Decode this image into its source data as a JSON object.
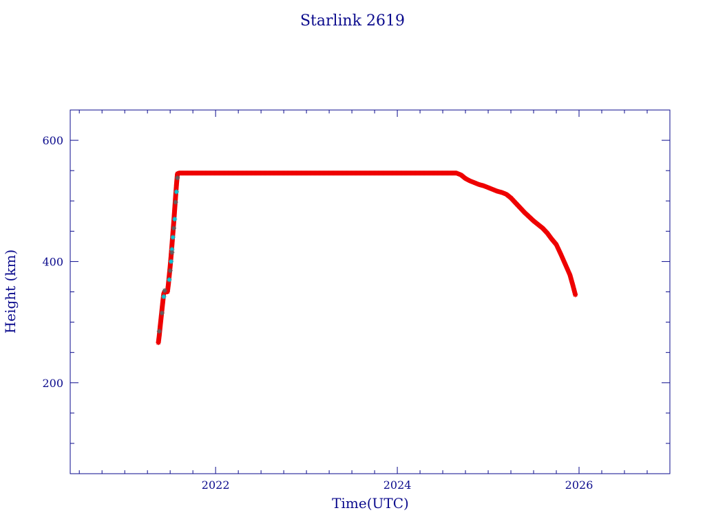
{
  "chart_data": {
    "type": "scatter",
    "title": "Starlink 2619",
    "xlabel": "Time(UTC)",
    "ylabel": "Height (km)",
    "xlim": [
      2020.4,
      2027.0
    ],
    "ylim": [
      50,
      650
    ],
    "x_ticks": [
      2022,
      2024,
      2026
    ],
    "x_tick_labels": [
      "2022",
      "2024",
      "2026"
    ],
    "x_minor_step": 0.25,
    "y_ticks": [
      200,
      400,
      600
    ],
    "y_tick_labels": [
      "200",
      "400",
      "600"
    ],
    "y_minor_step": 50,
    "grid": false,
    "colors": {
      "frame": "#0a0a8c",
      "text": "#0a0a8c",
      "main": "#ee0000",
      "alt": "#00c8d8",
      "dark": "#606060"
    },
    "series": [
      {
        "marker": "asterisk",
        "color": "#ee0000",
        "points": [
          [
            2021.37,
            266
          ],
          [
            2021.38,
            278
          ],
          [
            2021.39,
            293
          ],
          [
            2021.4,
            307
          ],
          [
            2021.41,
            321
          ],
          [
            2021.42,
            335
          ],
          [
            2021.43,
            348
          ],
          [
            2021.44,
            350
          ],
          [
            2021.45,
            350
          ],
          [
            2021.46,
            350
          ],
          [
            2021.47,
            350
          ],
          [
            2021.48,
            362
          ],
          [
            2021.49,
            377
          ],
          [
            2021.5,
            392
          ],
          [
            2021.51,
            409
          ],
          [
            2021.52,
            428
          ],
          [
            2021.53,
            447
          ],
          [
            2021.54,
            466
          ],
          [
            2021.55,
            487
          ],
          [
            2021.56,
            508
          ],
          [
            2021.57,
            528
          ],
          [
            2021.58,
            545
          ],
          [
            2021.6,
            546
          ],
          [
            2021.75,
            546
          ],
          [
            2022.0,
            546
          ],
          [
            2022.25,
            546
          ],
          [
            2022.5,
            546
          ],
          [
            2022.75,
            546
          ],
          [
            2023.0,
            546
          ],
          [
            2023.25,
            546
          ],
          [
            2023.5,
            546
          ],
          [
            2023.75,
            546
          ],
          [
            2024.0,
            546
          ],
          [
            2024.25,
            546
          ],
          [
            2024.5,
            546
          ],
          [
            2024.65,
            546
          ],
          [
            2024.7,
            543
          ],
          [
            2024.75,
            537
          ],
          [
            2024.8,
            533
          ],
          [
            2024.85,
            530
          ],
          [
            2024.9,
            527
          ],
          [
            2024.95,
            525
          ],
          [
            2025.0,
            522
          ],
          [
            2025.05,
            519
          ],
          [
            2025.1,
            516
          ],
          [
            2025.15,
            514
          ],
          [
            2025.2,
            511
          ],
          [
            2025.25,
            505
          ],
          [
            2025.3,
            497
          ],
          [
            2025.35,
            489
          ],
          [
            2025.4,
            481
          ],
          [
            2025.45,
            474
          ],
          [
            2025.5,
            467
          ],
          [
            2025.55,
            461
          ],
          [
            2025.6,
            455
          ],
          [
            2025.65,
            447
          ],
          [
            2025.7,
            437
          ],
          [
            2025.75,
            428
          ],
          [
            2025.8,
            412
          ],
          [
            2025.85,
            395
          ],
          [
            2025.9,
            378
          ],
          [
            2025.93,
            362
          ],
          [
            2025.96,
            345
          ]
        ]
      },
      {
        "marker": "asterisk",
        "color": "#00c8d8",
        "points": [
          [
            2021.43,
            342
          ],
          [
            2021.49,
            370
          ],
          [
            2021.51,
            400
          ],
          [
            2021.52,
            420
          ],
          [
            2021.53,
            440
          ],
          [
            2021.55,
            470
          ],
          [
            2021.57,
            515
          ]
        ]
      },
      {
        "marker": "asterisk",
        "color": "#606060",
        "points": [
          [
            2021.38,
            285
          ],
          [
            2021.41,
            315
          ],
          [
            2021.44,
            352
          ],
          [
            2021.5,
            385
          ],
          [
            2021.52,
            415
          ],
          [
            2021.54,
            455
          ],
          [
            2021.56,
            498
          ],
          [
            2021.58,
            538
          ]
        ]
      }
    ]
  }
}
